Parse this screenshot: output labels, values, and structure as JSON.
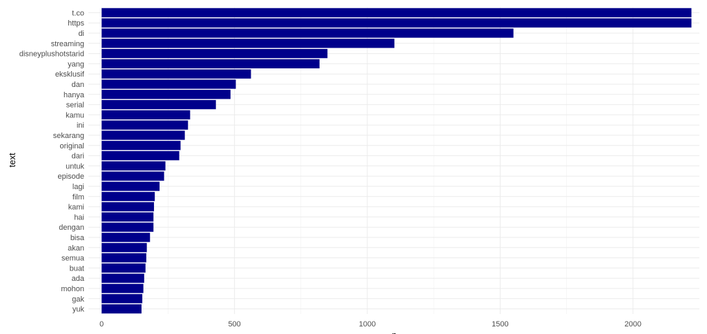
{
  "chart_data": {
    "type": "bar",
    "orientation": "horizontal",
    "categories": [
      "t.co",
      "https",
      "di",
      "streaming",
      "disneyplushotstarid",
      "yang",
      "eksklusif",
      "dan",
      "hanya",
      "serial",
      "kamu",
      "ini",
      "sekarang",
      "original",
      "dari",
      "untuk",
      "episode",
      "lagi",
      "film",
      "kami",
      "hai",
      "dengan",
      "bisa",
      "akan",
      "semua",
      "buat",
      "ada",
      "mohon",
      "gak",
      "yuk"
    ],
    "values": [
      2220,
      2220,
      1550,
      1102,
      850,
      820,
      562,
      505,
      485,
      430,
      333,
      325,
      313,
      297,
      292,
      240,
      235,
      218,
      200,
      197,
      195,
      195,
      182,
      170,
      168,
      165,
      160,
      157,
      153,
      150
    ],
    "xlabel": "n",
    "ylabel": "text",
    "xlim": [
      -50,
      2250
    ],
    "xticks": [
      0,
      500,
      1000,
      1500,
      2000
    ],
    "grid": true,
    "bar_color": "#00008B"
  }
}
